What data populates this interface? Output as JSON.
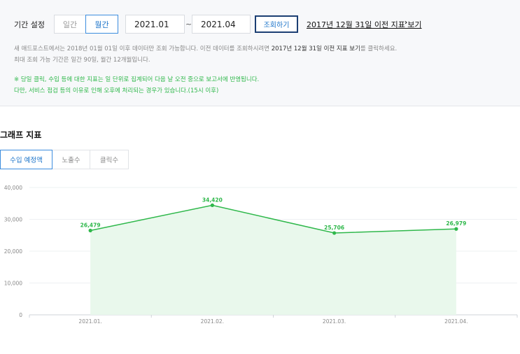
{
  "filter": {
    "period_label": "기간 설정",
    "daily_label": "일간",
    "monthly_label": "월간",
    "start_date": "2021.01",
    "tilde": "~",
    "end_date": "2021.04",
    "search_label": "조회하기",
    "prev_link": "2017년 12월 31일 이전 지표 보기",
    "prev_arrow": "›"
  },
  "notices": {
    "n1_pre": "새 애드포스트에서는 2018년 01월 01일 이후 데이터만 조회 가능합니다. 이전 데이터를 조회하시려면 ",
    "n1_bold": "2017년 12월 31일 이전 지표 보기",
    "n1_post": "를 클릭하세요.",
    "n2": "최대 조회 가능 기간은 일간 90일, 월간 12개월입니다.",
    "n3": "※ 당일 클릭, 수입 등에 대한 지표는 일 단위로 집계되어 다음 날 오전 중으로 보고서에 반영됩니다.",
    "n4": "다만, 서비스 점검 등의 이유로 인해 오후에 처리되는 경우가 있습니다.(15시 이후)"
  },
  "section_title": "그래프 지표",
  "tabs": {
    "revenue": "수입 예정액",
    "impressions": "노출수",
    "clicks": "클릭수"
  },
  "colors": {
    "accent": "#3c8dde",
    "line": "#2fb84b",
    "fill": "#e9f8ec"
  },
  "chart_data": {
    "type": "area",
    "categories": [
      "2021.01.",
      "2021.02.",
      "2021.03.",
      "2021.04."
    ],
    "series": [
      {
        "values": [
          26479,
          34420,
          25706,
          26979
        ]
      }
    ],
    "value_labels": [
      "26,479",
      "34,420",
      "25,706",
      "26,979"
    ],
    "y_ticks": [
      0,
      10000,
      20000,
      30000,
      40000
    ],
    "y_tick_labels": [
      "0",
      "10,000",
      "20,000",
      "30,000",
      "40,000"
    ],
    "ylim": [
      0,
      40000
    ],
    "grid": true
  }
}
